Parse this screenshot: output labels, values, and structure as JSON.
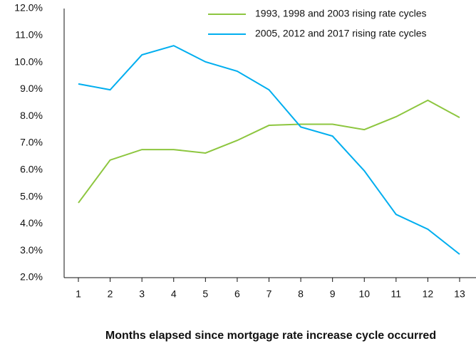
{
  "chart_data": {
    "type": "line",
    "x_label": "Months elapsed since mortgage rate increase cycle occurred",
    "categories": [
      "1",
      "2",
      "3",
      "4",
      "5",
      "6",
      "7",
      "8",
      "9",
      "10",
      "11",
      "12",
      "13"
    ],
    "series": [
      {
        "name": "1993, 1998 and 2003 rising rate cycles",
        "color": "#8dc63f",
        "values": [
          4.78,
          6.37,
          6.76,
          6.76,
          6.63,
          7.1,
          7.66,
          7.7,
          7.7,
          7.5,
          7.98,
          8.59,
          7.95
        ]
      },
      {
        "name": "2005, 2012 and 2017 rising rate cycles",
        "color": "#00aeef",
        "values": [
          9.2,
          8.98,
          10.28,
          10.62,
          10.02,
          9.67,
          8.98,
          7.6,
          7.26,
          5.97,
          4.35,
          3.8,
          2.87
        ]
      }
    ],
    "ylim": [
      2,
      12
    ],
    "yticks": [
      {
        "value": 2,
        "label": "2.0%"
      },
      {
        "value": 3,
        "label": "3.0%"
      },
      {
        "value": 4,
        "label": "4.0%"
      },
      {
        "value": 5,
        "label": "5.0%"
      },
      {
        "value": 6,
        "label": "6.0%"
      },
      {
        "value": 7,
        "label": "7.0%"
      },
      {
        "value": 8,
        "label": "8.0%"
      },
      {
        "value": 9,
        "label": "9.0%"
      },
      {
        "value": 10,
        "label": "10.0%"
      },
      {
        "value": 11,
        "label": "11.0%"
      },
      {
        "value": 12,
        "label": "12.0%"
      }
    ],
    "grid": false,
    "legend": "top-right"
  }
}
